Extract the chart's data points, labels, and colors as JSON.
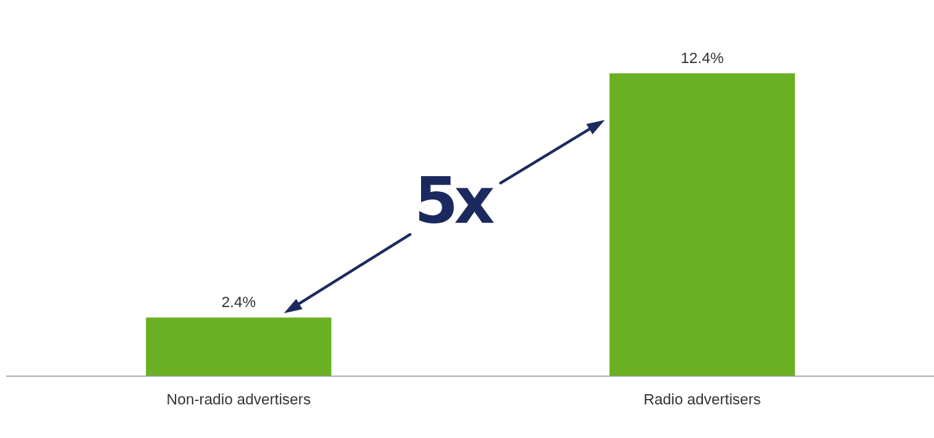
{
  "chart_data": {
    "type": "bar",
    "categories": [
      "Non-radio advertisers",
      "Radio advertisers"
    ],
    "values": [
      2.4,
      12.4
    ],
    "value_labels": [
      "2.4%",
      "12.4%"
    ],
    "color": "#6ab023",
    "grid": false,
    "legend": false,
    "annotations": [
      "5x"
    ]
  }
}
